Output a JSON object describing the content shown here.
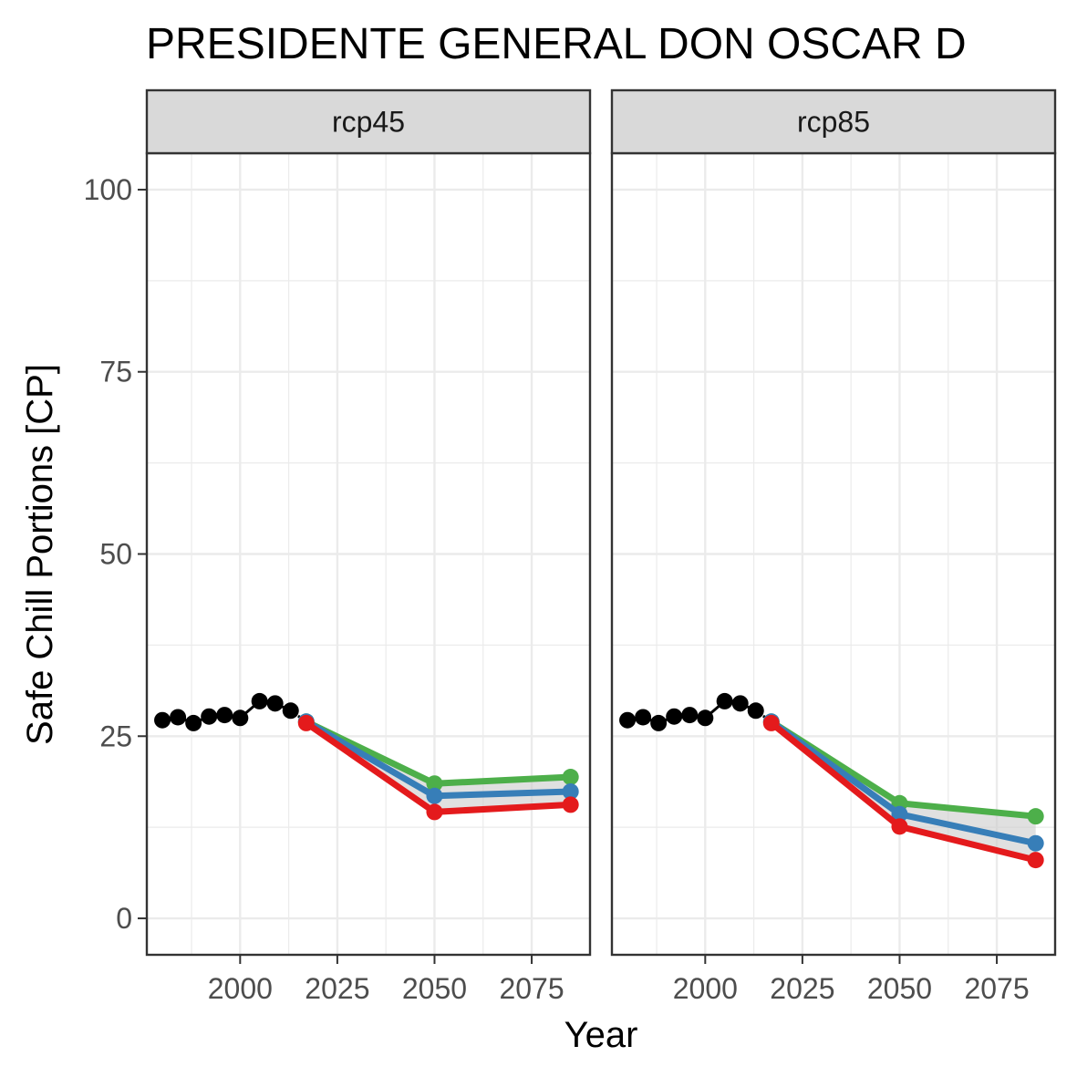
{
  "chart_data": {
    "type": "line",
    "title": "PRESIDENTE GENERAL DON OSCAR D",
    "xlabel": "Year",
    "ylabel": "Safe Chill Portions [CP]",
    "xlim": [
      1976,
      2090
    ],
    "ylim": [
      -5,
      105
    ],
    "x_ticks": [
      2000,
      2025,
      2050,
      2075
    ],
    "y_ticks": [
      0,
      25,
      50,
      75,
      100
    ],
    "grid": true,
    "legend": "none",
    "colors": {
      "historical": "#000000",
      "upper": "#4daf4a",
      "median": "#377eb8",
      "lower": "#e41a1c",
      "band": "#cccccc"
    },
    "panels": [
      {
        "name": "rcp45",
        "historical": {
          "x": [
            1980,
            1984,
            1988,
            1992,
            1996,
            2000,
            2005,
            2009,
            2013
          ],
          "y": [
            27.2,
            27.6,
            26.8,
            27.7,
            27.9,
            27.5,
            29.8,
            29.5,
            28.5
          ]
        },
        "projections": {
          "x": [
            2017,
            2050,
            2085
          ],
          "upper": [
            27.0,
            18.5,
            19.4
          ],
          "median": [
            27.0,
            16.8,
            17.4
          ],
          "lower": [
            26.8,
            14.6,
            15.6
          ]
        }
      },
      {
        "name": "rcp85",
        "historical": {
          "x": [
            1980,
            1984,
            1988,
            1992,
            1996,
            2000,
            2005,
            2009,
            2013
          ],
          "y": [
            27.2,
            27.6,
            26.8,
            27.7,
            27.9,
            27.5,
            29.8,
            29.5,
            28.5
          ]
        },
        "projections": {
          "x": [
            2017,
            2050,
            2085
          ],
          "upper": [
            27.0,
            15.8,
            14.0
          ],
          "median": [
            27.0,
            14.3,
            10.3
          ],
          "lower": [
            26.8,
            12.6,
            8.0
          ]
        }
      }
    ]
  }
}
